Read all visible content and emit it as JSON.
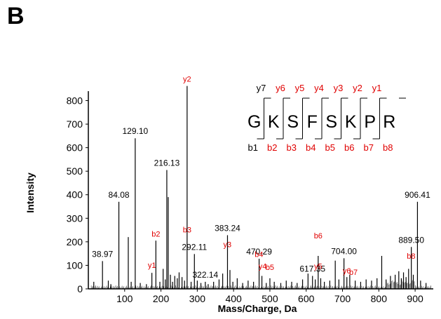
{
  "panel_label": "B",
  "chart_data": {
    "type": "bar",
    "xlabel": "Mass/Charge, Da",
    "ylabel": "Intensity",
    "xlim": [
      0,
      950
    ],
    "ylim": [
      0,
      870
    ],
    "xticks": [
      "100",
      "200",
      "300",
      "400",
      "500",
      "600",
      "700",
      "800",
      "900"
    ],
    "xtick_values": [
      100,
      200,
      300,
      400,
      500,
      600,
      700,
      800,
      900
    ],
    "yticks": [
      "0",
      "100",
      "200",
      "300",
      "400",
      "500",
      "600",
      "700",
      "800"
    ],
    "ytick_values": [
      0,
      100,
      200,
      300,
      400,
      500,
      600,
      700,
      800
    ],
    "peaks": [
      {
        "mz": 38.97,
        "intensity": 118,
        "label": "38.97"
      },
      {
        "mz": 84.08,
        "intensity": 370,
        "label": "84.08"
      },
      {
        "mz": 129.1,
        "intensity": 640,
        "label": "129.10"
      },
      {
        "mz": 216.13,
        "intensity": 505,
        "label": "216.13"
      },
      {
        "mz": 292.11,
        "intensity": 148,
        "label": "292.11"
      },
      {
        "mz": 322.14,
        "intensity": 30,
        "label": "322.14"
      },
      {
        "mz": 383.24,
        "intensity": 228,
        "label": "383.24"
      },
      {
        "mz": 470.29,
        "intensity": 128,
        "label": "470.29"
      },
      {
        "mz": 617.35,
        "intensity": 55,
        "label": "617.35"
      },
      {
        "mz": 704.0,
        "intensity": 130,
        "label": "704.00"
      },
      {
        "mz": 889.5,
        "intensity": 178,
        "label": "889.50"
      },
      {
        "mz": 906.41,
        "intensity": 370,
        "label": "906.41"
      }
    ],
    "unlabeled_peaks": [
      {
        "mz": 15,
        "intensity": 30
      },
      {
        "mz": 55,
        "intensity": 35
      },
      {
        "mz": 62,
        "intensity": 20
      },
      {
        "mz": 110,
        "intensity": 220
      },
      {
        "mz": 118,
        "intensity": 30
      },
      {
        "mz": 143,
        "intensity": 25
      },
      {
        "mz": 160,
        "intensity": 20
      },
      {
        "mz": 175,
        "intensity": 68
      },
      {
        "mz": 186,
        "intensity": 205
      },
      {
        "mz": 197,
        "intensity": 30
      },
      {
        "mz": 206,
        "intensity": 85
      },
      {
        "mz": 212,
        "intensity": 40
      },
      {
        "mz": 220,
        "intensity": 390
      },
      {
        "mz": 226,
        "intensity": 60
      },
      {
        "mz": 232,
        "intensity": 30
      },
      {
        "mz": 238,
        "intensity": 55
      },
      {
        "mz": 245,
        "intensity": 45
      },
      {
        "mz": 250,
        "intensity": 70
      },
      {
        "mz": 258,
        "intensity": 50
      },
      {
        "mz": 265,
        "intensity": 35
      },
      {
        "mz": 272,
        "intensity": 862
      },
      {
        "mz": 283,
        "intensity": 30
      },
      {
        "mz": 300,
        "intensity": 35
      },
      {
        "mz": 310,
        "intensity": 25
      },
      {
        "mz": 330,
        "intensity": 20
      },
      {
        "mz": 345,
        "intensity": 30
      },
      {
        "mz": 360,
        "intensity": 40
      },
      {
        "mz": 370,
        "intensity": 65
      },
      {
        "mz": 390,
        "intensity": 80
      },
      {
        "mz": 398,
        "intensity": 30
      },
      {
        "mz": 410,
        "intensity": 45
      },
      {
        "mz": 425,
        "intensity": 25
      },
      {
        "mz": 440,
        "intensity": 35
      },
      {
        "mz": 455,
        "intensity": 30
      },
      {
        "mz": 478,
        "intensity": 55
      },
      {
        "mz": 490,
        "intensity": 25
      },
      {
        "mz": 500,
        "intensity": 45
      },
      {
        "mz": 512,
        "intensity": 30
      },
      {
        "mz": 530,
        "intensity": 25
      },
      {
        "mz": 545,
        "intensity": 35
      },
      {
        "mz": 560,
        "intensity": 30
      },
      {
        "mz": 575,
        "intensity": 25
      },
      {
        "mz": 590,
        "intensity": 40
      },
      {
        "mz": 605,
        "intensity": 65
      },
      {
        "mz": 625,
        "intensity": 40
      },
      {
        "mz": 633,
        "intensity": 140
      },
      {
        "mz": 640,
        "intensity": 45
      },
      {
        "mz": 650,
        "intensity": 30
      },
      {
        "mz": 665,
        "intensity": 35
      },
      {
        "mz": 680,
        "intensity": 120
      },
      {
        "mz": 690,
        "intensity": 40
      },
      {
        "mz": 712,
        "intensity": 50
      },
      {
        "mz": 720,
        "intensity": 60
      },
      {
        "mz": 735,
        "intensity": 35
      },
      {
        "mz": 750,
        "intensity": 30
      },
      {
        "mz": 765,
        "intensity": 40
      },
      {
        "mz": 780,
        "intensity": 35
      },
      {
        "mz": 795,
        "intensity": 45
      },
      {
        "mz": 808,
        "intensity": 140
      },
      {
        "mz": 820,
        "intensity": 40
      },
      {
        "mz": 832,
        "intensity": 55
      },
      {
        "mz": 845,
        "intensity": 60
      },
      {
        "mz": 855,
        "intensity": 75
      },
      {
        "mz": 862,
        "intensity": 45
      },
      {
        "mz": 868,
        "intensity": 70
      },
      {
        "mz": 875,
        "intensity": 50
      },
      {
        "mz": 882,
        "intensity": 85
      },
      {
        "mz": 895,
        "intensity": 60
      },
      {
        "mz": 915,
        "intensity": 35
      },
      {
        "mz": 930,
        "intensity": 25
      }
    ],
    "ion_annotations": [
      {
        "text": "y2",
        "mz": 272,
        "intensity": 880
      },
      {
        "text": "b2",
        "mz": 186,
        "intensity": 222
      },
      {
        "text": "y1",
        "mz": 175,
        "intensity": 90
      },
      {
        "text": "b3",
        "mz": 272,
        "intensity": 240
      },
      {
        "text": "y3",
        "mz": 383,
        "intensity": 178
      },
      {
        "text": "b4",
        "mz": 470,
        "intensity": 135
      },
      {
        "text": "y4",
        "mz": 480,
        "intensity": 85
      },
      {
        "text": "b5",
        "mz": 500,
        "intensity": 80
      },
      {
        "text": "b6",
        "mz": 633,
        "intensity": 215
      },
      {
        "text": "y5",
        "mz": 633,
        "intensity": 85
      },
      {
        "text": "y6",
        "mz": 712,
        "intensity": 65
      },
      {
        "text": "b7",
        "mz": 730,
        "intensity": 60
      },
      {
        "text": "b8",
        "mz": 889,
        "intensity": 128
      }
    ],
    "colors": {
      "peaks": "#000000",
      "ions": "#e00000",
      "axis": "#000000"
    }
  },
  "sequence": {
    "residues": [
      "G",
      "K",
      "S",
      "F",
      "S",
      "K",
      "P",
      "R"
    ],
    "y_ions": [
      "y7",
      "y6",
      "y5",
      "y4",
      "y3",
      "y2",
      "y1"
    ],
    "b_ions": [
      "b1",
      "b2",
      "b3",
      "b4",
      "b5",
      "b6",
      "b7",
      "b8"
    ],
    "y_colors": [
      "#000000",
      "#e00000",
      "#e00000",
      "#e00000",
      "#e00000",
      "#e00000",
      "#e00000"
    ],
    "b_colors": [
      "#000000",
      "#e00000",
      "#e00000",
      "#e00000",
      "#e00000",
      "#e00000",
      "#e00000",
      "#e00000"
    ]
  }
}
